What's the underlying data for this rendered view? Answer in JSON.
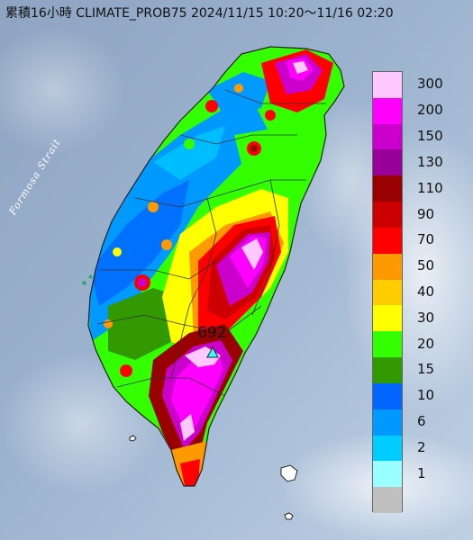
{
  "title": "累積16小時 CLIMATE_PROB75 2024/11/15 10:20～11/16 02:20",
  "strait_label": "Formosa Strait",
  "peak": {
    "value": "692"
  },
  "legend": {
    "levels": [
      {
        "label": "300",
        "color": "#ffc8ff"
      },
      {
        "label": "200",
        "color": "#ff00ff"
      },
      {
        "label": "150",
        "color": "#cc00cc"
      },
      {
        "label": "130",
        "color": "#990099"
      },
      {
        "label": "110",
        "color": "#990000"
      },
      {
        "label": "90",
        "color": "#cc0000"
      },
      {
        "label": "70",
        "color": "#ff0000"
      },
      {
        "label": "50",
        "color": "#ff9900"
      },
      {
        "label": "40",
        "color": "#ffcc00"
      },
      {
        "label": "30",
        "color": "#ffff00"
      },
      {
        "label": "20",
        "color": "#33ff00"
      },
      {
        "label": "15",
        "color": "#339900"
      },
      {
        "label": "10",
        "color": "#0066ff"
      },
      {
        "label": "6",
        "color": "#0099ff"
      },
      {
        "label": "2",
        "color": "#00ccff"
      },
      {
        "label": "1",
        "color": "#99ffff"
      },
      {
        "label": "",
        "color": "#c0c0c0"
      }
    ]
  }
}
